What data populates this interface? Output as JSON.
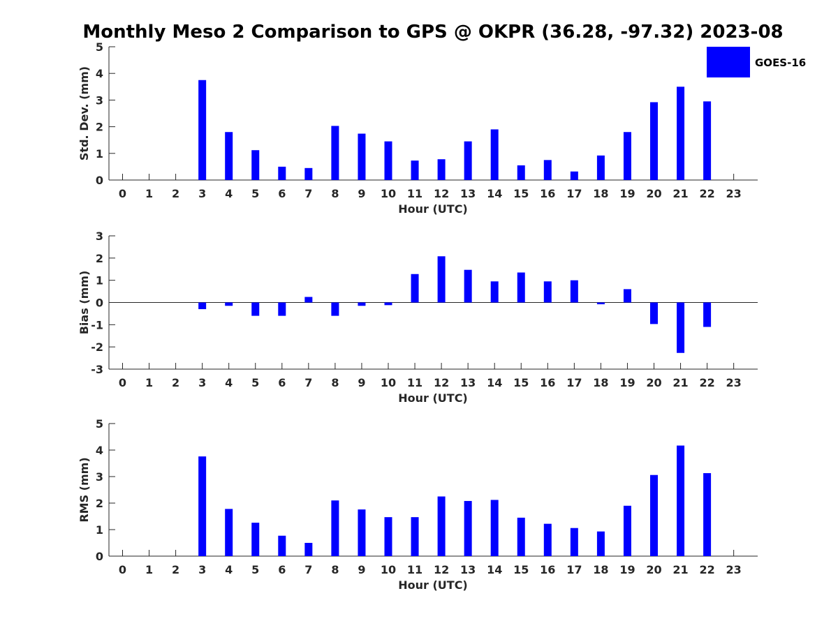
{
  "figure_title": "Monthly Meso 2 Comparison to GPS @ OKPR (36.28, -97.32) 2023-08",
  "legend": {
    "label": "GOES-16",
    "color": "#0000ff"
  },
  "chart_data": [
    {
      "type": "bar",
      "name": "stddev",
      "ylabel": "Std. Dev. (mm)",
      "xlabel": "Hour (UTC)",
      "ylim": [
        0,
        5
      ],
      "yticks": [
        0,
        1,
        2,
        3,
        4,
        5
      ],
      "categories": [
        "0",
        "1",
        "2",
        "3",
        "4",
        "5",
        "6",
        "7",
        "8",
        "9",
        "10",
        "11",
        "12",
        "13",
        "14",
        "15",
        "16",
        "17",
        "18",
        "19",
        "20",
        "21",
        "22",
        "23"
      ],
      "series": [
        {
          "name": "GOES-16",
          "values": [
            null,
            null,
            null,
            3.75,
            1.8,
            1.12,
            0.5,
            0.45,
            2.03,
            1.74,
            1.45,
            0.73,
            0.78,
            1.45,
            1.9,
            0.55,
            0.75,
            0.32,
            0.92,
            1.8,
            2.92,
            3.5,
            2.95,
            null
          ]
        }
      ]
    },
    {
      "type": "bar",
      "name": "bias",
      "ylabel": "Bias (mm)",
      "xlabel": "Hour (UTC)",
      "ylim": [
        -3,
        3
      ],
      "yticks": [
        -3,
        -2,
        -1,
        0,
        1,
        2,
        3
      ],
      "categories": [
        "0",
        "1",
        "2",
        "3",
        "4",
        "5",
        "6",
        "7",
        "8",
        "9",
        "10",
        "11",
        "12",
        "13",
        "14",
        "15",
        "16",
        "17",
        "18",
        "19",
        "20",
        "21",
        "22",
        "23"
      ],
      "series": [
        {
          "name": "GOES-16",
          "values": [
            null,
            null,
            null,
            -0.3,
            -0.15,
            -0.6,
            -0.6,
            0.25,
            -0.6,
            -0.15,
            -0.12,
            1.28,
            2.08,
            1.47,
            0.95,
            1.35,
            0.95,
            1.0,
            -0.08,
            0.6,
            -0.97,
            -2.27,
            -1.1,
            null
          ]
        }
      ]
    },
    {
      "type": "bar",
      "name": "rms",
      "ylabel": "RMS (mm)",
      "xlabel": "Hour (UTC)",
      "ylim": [
        0,
        5
      ],
      "yticks": [
        0,
        1,
        2,
        3,
        4,
        5
      ],
      "categories": [
        "0",
        "1",
        "2",
        "3",
        "4",
        "5",
        "6",
        "7",
        "8",
        "9",
        "10",
        "11",
        "12",
        "13",
        "14",
        "15",
        "16",
        "17",
        "18",
        "19",
        "20",
        "21",
        "22",
        "23"
      ],
      "series": [
        {
          "name": "GOES-16",
          "values": [
            null,
            null,
            null,
            3.76,
            1.78,
            1.26,
            0.77,
            0.5,
            2.1,
            1.76,
            1.47,
            1.47,
            2.25,
            2.08,
            2.12,
            1.45,
            1.22,
            1.06,
            0.93,
            1.9,
            3.06,
            4.17,
            3.13,
            null
          ]
        }
      ]
    }
  ]
}
